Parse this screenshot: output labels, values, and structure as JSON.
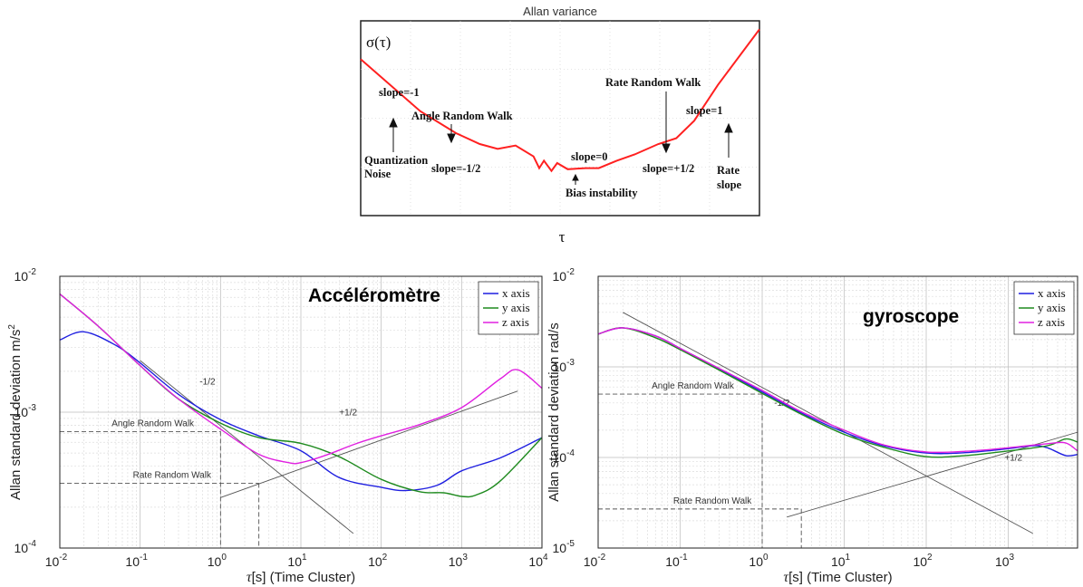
{
  "chart_data": [
    {
      "type": "line",
      "title": "Allan variance",
      "ylabel": "σ(τ)",
      "xlabel": "τ",
      "log_x": true,
      "log_y": true,
      "color": "#ff2020",
      "curve": {
        "x": [
          0.01,
          0.1,
          0.4,
          1,
          2,
          4,
          8,
          10,
          12,
          16,
          20,
          30,
          60,
          100,
          200,
          400,
          1000,
          2000,
          4000,
          10000,
          50000
        ],
        "y": [
          1.0,
          0.3,
          0.18,
          0.14,
          0.125,
          0.135,
          0.105,
          0.08,
          0.095,
          0.075,
          0.09,
          0.078,
          0.08,
          0.08,
          0.095,
          0.11,
          0.14,
          0.16,
          0.24,
          0.55,
          2.0
        ]
      },
      "annotations": [
        "slope=-1",
        "Angle Random Walk",
        "Quantization Noise",
        "slope=-1/2",
        "slope=0",
        "Bias instability",
        "Rate Random Walk",
        "slope=+1/2",
        "slope=1",
        "Rate slope"
      ]
    },
    {
      "type": "line",
      "title": "Accéléromètre",
      "xlabel": "τ[s] (Time Cluster)",
      "ylabel": "Allan standard deviation m/s²",
      "log_x": true,
      "log_y": true,
      "xlim": [
        0.01,
        10000
      ],
      "ylim": [
        0.0001,
        0.01
      ],
      "x_ticks": [
        {
          "base": "10",
          "exp": "-2"
        },
        {
          "base": "10",
          "exp": "-1"
        },
        {
          "base": "10",
          "exp": "0"
        },
        {
          "base": "10",
          "exp": "1"
        },
        {
          "base": "10",
          "exp": "2"
        },
        {
          "base": "10",
          "exp": "3"
        },
        {
          "base": "10",
          "exp": "4"
        }
      ],
      "y_ticks": [
        {
          "base": "10",
          "exp": "-4"
        },
        {
          "base": "10",
          "exp": "-3"
        },
        {
          "base": "10",
          "exp": "-2"
        }
      ],
      "legend": "top-right",
      "grid": true,
      "series": [
        {
          "name": "x axis",
          "color": "#1f1fe0",
          "x": [
            0.01,
            0.02,
            0.05,
            0.1,
            0.3,
            1,
            3,
            10,
            30,
            100,
            200,
            500,
            1000,
            3000,
            10000
          ],
          "y": [
            0.0034,
            0.0039,
            0.0031,
            0.0023,
            0.00135,
            0.00088,
            0.00067,
            0.00052,
            0.00033,
            0.00028,
            0.000265,
            0.00029,
            0.00037,
            0.00046,
            0.00065
          ]
        },
        {
          "name": "y axis",
          "color": "#1e8a1e",
          "x": [
            0.01,
            0.03,
            0.1,
            0.3,
            1,
            3,
            10,
            30,
            100,
            300,
            600,
            1000,
            1500,
            3000,
            10000
          ],
          "y": [
            0.0074,
            0.0043,
            0.0022,
            0.00125,
            0.00083,
            0.00065,
            0.00059,
            0.00047,
            0.00032,
            0.00026,
            0.000255,
            0.00024,
            0.000245,
            0.00031,
            0.00065
          ]
        },
        {
          "name": "z axis",
          "color": "#e020e0",
          "x": [
            0.01,
            0.03,
            0.1,
            0.3,
            1,
            3,
            7,
            10,
            20,
            50,
            100,
            300,
            1000,
            3000,
            5000,
            10000
          ],
          "y": [
            0.0074,
            0.0043,
            0.0022,
            0.00125,
            0.00075,
            0.00049,
            0.000425,
            0.000425,
            0.00048,
            0.00059,
            0.00067,
            0.00081,
            0.00108,
            0.00175,
            0.00205,
            0.0015
          ]
        }
      ],
      "reference_lines": [
        {
          "label": "-1/2",
          "x": [
            0.1,
            45
          ],
          "y": [
            0.0024,
            0.000128
          ]
        },
        {
          "label": "+1/2",
          "x": [
            1,
            5000
          ],
          "y": [
            0.000235,
            0.00143
          ]
        }
      ],
      "markers": [
        {
          "label": "Angle Random Walk",
          "x": 1,
          "y": 0.00072
        },
        {
          "label": "Rate Random Walk",
          "x": 3,
          "y": 0.0003
        }
      ]
    },
    {
      "type": "line",
      "title": "gyroscope",
      "xlabel": "τ[s] (Time Cluster)",
      "ylabel": "Allan standard deviation rad/s",
      "log_x": true,
      "log_y": true,
      "xlim": [
        0.01,
        7000
      ],
      "ylim": [
        1e-05,
        0.01
      ],
      "x_ticks": [
        {
          "base": "10",
          "exp": "-2"
        },
        {
          "base": "10",
          "exp": "-1"
        },
        {
          "base": "10",
          "exp": "0"
        },
        {
          "base": "10",
          "exp": "1"
        },
        {
          "base": "10",
          "exp": "2"
        },
        {
          "base": "10",
          "exp": "3"
        }
      ],
      "y_ticks": [
        {
          "base": "10",
          "exp": "-5"
        },
        {
          "base": "10",
          "exp": "-4"
        },
        {
          "base": "10",
          "exp": "-3"
        },
        {
          "base": "10",
          "exp": "-2"
        }
      ],
      "legend": "top-right",
      "grid": true,
      "series": [
        {
          "name": "x axis",
          "color": "#1f1fe0",
          "x": [
            0.01,
            0.02,
            0.05,
            0.1,
            0.3,
            1,
            3,
            10,
            30,
            100,
            300,
            1000,
            2000,
            3000,
            5000,
            7000
          ],
          "y": [
            0.0023,
            0.0027,
            0.0022,
            0.0016,
            0.00095,
            0.00053,
            0.00031,
            0.00019,
            0.000135,
            0.000112,
            0.000113,
            0.000125,
            0.000135,
            0.000128,
            0.000105,
            0.000108
          ]
        },
        {
          "name": "y axis",
          "color": "#1e8a1e",
          "x": [
            0.01,
            0.02,
            0.05,
            0.1,
            0.3,
            1,
            3,
            10,
            30,
            100,
            300,
            1000,
            3000,
            5000,
            7000
          ],
          "y": [
            0.0023,
            0.0027,
            0.0021,
            0.00155,
            0.00092,
            0.00051,
            0.0003,
            0.00018,
            0.00013,
            0.000102,
            0.000105,
            0.000118,
            0.000135,
            0.00016,
            0.000148
          ]
        },
        {
          "name": "z axis",
          "color": "#e020e0",
          "x": [
            0.01,
            0.02,
            0.05,
            0.1,
            0.3,
            1,
            3,
            10,
            30,
            100,
            300,
            1000,
            3000,
            5000,
            7000
          ],
          "y": [
            0.0023,
            0.0027,
            0.0022,
            0.0016,
            0.00096,
            0.00055,
            0.00032,
            0.0002,
            0.000138,
            0.000115,
            0.000117,
            0.000128,
            0.000142,
            0.000145,
            0.000118
          ]
        }
      ],
      "reference_lines": [
        {
          "label": "-1/2",
          "x": [
            0.02,
            2000
          ],
          "y": [
            0.004,
            1.45e-05
          ]
        },
        {
          "label": "+1/2",
          "x": [
            2,
            7000
          ],
          "y": [
            2.2e-05,
            0.00019
          ]
        }
      ],
      "markers": [
        {
          "label": "Angle Random Walk",
          "x": 1,
          "y": 0.0005
        },
        {
          "label": "Rate Random Walk",
          "x": 3,
          "y": 2.7e-05
        }
      ]
    }
  ]
}
